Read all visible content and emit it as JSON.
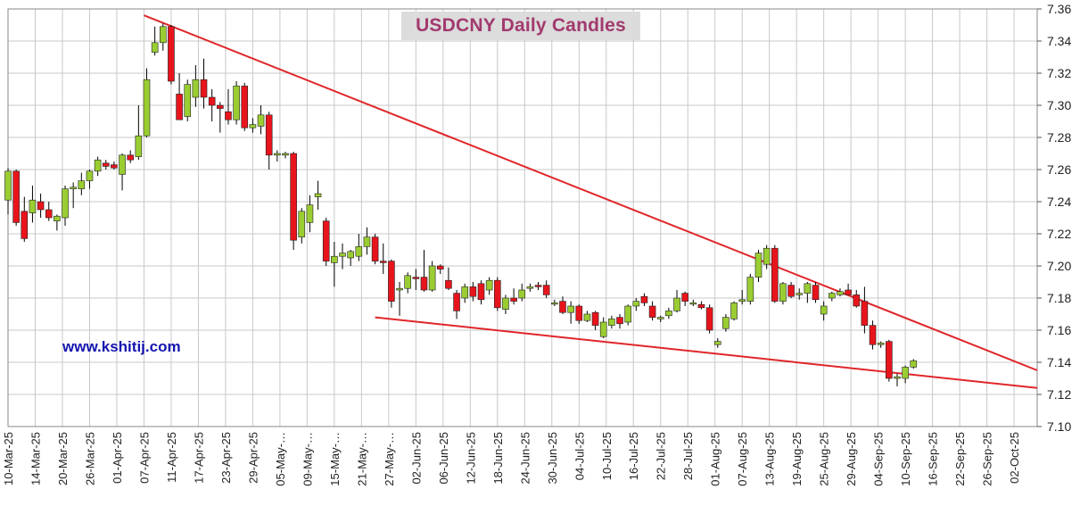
{
  "chart_data": {
    "type": "candlestick",
    "title": "USDCNY Daily Candles",
    "watermark": "www.kshitij.com",
    "xlabel": "",
    "ylabel": "",
    "ylim": [
      7.1,
      7.36
    ],
    "y_ticks": [
      "7.10",
      "7.12",
      "7.14",
      "7.16",
      "7.18",
      "7.20",
      "7.22",
      "7.24",
      "7.26",
      "7.28",
      "7.30",
      "7.32",
      "7.34",
      "7.36"
    ],
    "x_tick_labels": [
      "10-Mar-25",
      "14-Mar-25",
      "20-Mar-25",
      "26-Mar-25",
      "01-Apr-25",
      "07-Apr-25",
      "11-Apr-25",
      "17-Apr-25",
      "23-Apr-25",
      "29-Apr-25",
      "05-May-…",
      "09-May-…",
      "15-May-…",
      "21-May-…",
      "27-May-…",
      "02-Jun-25",
      "06-Jun-25",
      "12-Jun-25",
      "18-Jun-25",
      "24-Jun-25",
      "30-Jun-25",
      "04-Jul-25",
      "10-Jul-25",
      "16-Jul-25",
      "22-Jul-25",
      "28-Jul-25",
      "01-Aug-25",
      "07-Aug-25",
      "13-Aug-25",
      "19-Aug-25",
      "25-Aug-25",
      "29-Aug-25",
      "04-Sep-25",
      "10-Sep-25",
      "16-Sep-25",
      "22-Sep-25",
      "26-Sep-25",
      "02-Oct-25"
    ],
    "grid": true,
    "y_axis_side": "right",
    "colors": {
      "up": "#9acd32",
      "down": "#e8141c",
      "trendline": "#e0262a",
      "grid": "#c8c8c8",
      "wick": "#000000"
    },
    "trendlines": [
      {
        "from": [
          5.0,
          7.356
        ],
        "to": [
          38.0,
          7.135
        ]
      },
      {
        "from": [
          13.5,
          7.168
        ],
        "to": [
          38.0,
          7.124
        ]
      }
    ],
    "candles": [
      {
        "x": 0.0,
        "o": 7.241,
        "h": 7.261,
        "l": 7.232,
        "c": 7.259
      },
      {
        "x": 0.3,
        "o": 7.259,
        "h": 7.26,
        "l": 7.225,
        "c": 7.227
      },
      {
        "x": 0.6,
        "o": 7.234,
        "h": 7.243,
        "l": 7.215,
        "c": 7.217
      },
      {
        "x": 0.9,
        "o": 7.233,
        "h": 7.25,
        "l": 7.227,
        "c": 7.241
      },
      {
        "x": 1.2,
        "o": 7.24,
        "h": 7.245,
        "l": 7.23,
        "c": 7.235
      },
      {
        "x": 1.5,
        "o": 7.235,
        "h": 7.24,
        "l": 7.228,
        "c": 7.23
      },
      {
        "x": 1.8,
        "o": 7.228,
        "h": 7.232,
        "l": 7.222,
        "c": 7.231
      },
      {
        "x": 2.1,
        "o": 7.23,
        "h": 7.25,
        "l": 7.225,
        "c": 7.248
      },
      {
        "x": 2.4,
        "o": 7.248,
        "h": 7.252,
        "l": 7.236,
        "c": 7.249
      },
      {
        "x": 2.7,
        "o": 7.248,
        "h": 7.258,
        "l": 7.244,
        "c": 7.253
      },
      {
        "x": 3.0,
        "o": 7.253,
        "h": 7.26,
        "l": 7.248,
        "c": 7.259
      },
      {
        "x": 3.3,
        "o": 7.259,
        "h": 7.268,
        "l": 7.256,
        "c": 7.266
      },
      {
        "x": 3.6,
        "o": 7.264,
        "h": 7.266,
        "l": 7.26,
        "c": 7.262
      },
      {
        "x": 3.9,
        "o": 7.263,
        "h": 7.265,
        "l": 7.26,
        "c": 7.261
      },
      {
        "x": 4.2,
        "o": 7.257,
        "h": 7.27,
        "l": 7.247,
        "c": 7.269
      },
      {
        "x": 4.5,
        "o": 7.269,
        "h": 7.272,
        "l": 7.264,
        "c": 7.266
      },
      {
        "x": 4.8,
        "o": 7.268,
        "h": 7.3,
        "l": 7.266,
        "c": 7.281
      },
      {
        "x": 5.1,
        "o": 7.281,
        "h": 7.323,
        "l": 7.28,
        "c": 7.316
      },
      {
        "x": 5.4,
        "o": 7.333,
        "h": 7.349,
        "l": 7.331,
        "c": 7.339
      },
      {
        "x": 5.7,
        "o": 7.339,
        "h": 7.351,
        "l": 7.334,
        "c": 7.349
      },
      {
        "x": 6.0,
        "o": 7.349,
        "h": 7.35,
        "l": 7.313,
        "c": 7.315
      },
      {
        "x": 6.3,
        "o": 7.307,
        "h": 7.32,
        "l": 7.291,
        "c": 7.291
      },
      {
        "x": 6.6,
        "o": 7.293,
        "h": 7.316,
        "l": 7.29,
        "c": 7.313
      },
      {
        "x": 6.9,
        "o": 7.305,
        "h": 7.325,
        "l": 7.299,
        "c": 7.316
      },
      {
        "x": 7.2,
        "o": 7.316,
        "h": 7.329,
        "l": 7.298,
        "c": 7.305
      },
      {
        "x": 7.5,
        "o": 7.305,
        "h": 7.31,
        "l": 7.29,
        "c": 7.3
      },
      {
        "x": 7.8,
        "o": 7.3,
        "h": 7.302,
        "l": 7.283,
        "c": 7.298
      },
      {
        "x": 8.1,
        "o": 7.296,
        "h": 7.31,
        "l": 7.288,
        "c": 7.291
      },
      {
        "x": 8.4,
        "o": 7.291,
        "h": 7.315,
        "l": 7.288,
        "c": 7.312
      },
      {
        "x": 8.7,
        "o": 7.312,
        "h": 7.314,
        "l": 7.284,
        "c": 7.286
      },
      {
        "x": 9.0,
        "o": 7.286,
        "h": 7.292,
        "l": 7.283,
        "c": 7.288
      },
      {
        "x": 9.3,
        "o": 7.287,
        "h": 7.3,
        "l": 7.282,
        "c": 7.294
      },
      {
        "x": 9.6,
        "o": 7.294,
        "h": 7.296,
        "l": 7.26,
        "c": 7.269
      },
      {
        "x": 9.9,
        "o": 7.269,
        "h": 7.272,
        "l": 7.265,
        "c": 7.27
      },
      {
        "x": 10.2,
        "o": 7.269,
        "h": 7.271,
        "l": 7.267,
        "c": 7.27
      },
      {
        "x": 10.5,
        "o": 7.27,
        "h": 7.271,
        "l": 7.21,
        "c": 7.216
      },
      {
        "x": 10.8,
        "o": 7.218,
        "h": 7.236,
        "l": 7.214,
        "c": 7.234
      },
      {
        "x": 11.1,
        "o": 7.227,
        "h": 7.244,
        "l": 7.221,
        "c": 7.238
      },
      {
        "x": 11.4,
        "o": 7.243,
        "h": 7.253,
        "l": 7.235,
        "c": 7.245
      },
      {
        "x": 11.7,
        "o": 7.228,
        "h": 7.23,
        "l": 7.2,
        "c": 7.203
      },
      {
        "x": 12.0,
        "o": 7.202,
        "h": 7.215,
        "l": 7.187,
        "c": 7.206
      },
      {
        "x": 12.3,
        "o": 7.206,
        "h": 7.214,
        "l": 7.198,
        "c": 7.208
      },
      {
        "x": 12.6,
        "o": 7.205,
        "h": 7.21,
        "l": 7.2,
        "c": 7.209
      },
      {
        "x": 12.9,
        "o": 7.206,
        "h": 7.22,
        "l": 7.203,
        "c": 7.212
      },
      {
        "x": 13.2,
        "o": 7.212,
        "h": 7.224,
        "l": 7.207,
        "c": 7.218
      },
      {
        "x": 13.5,
        "o": 7.218,
        "h": 7.22,
        "l": 7.201,
        "c": 7.203
      },
      {
        "x": 13.8,
        "o": 7.203,
        "h": 7.214,
        "l": 7.195,
        "c": 7.202
      },
      {
        "x": 14.1,
        "o": 7.203,
        "h": 7.204,
        "l": 7.174,
        "c": 7.178
      },
      {
        "x": 14.4,
        "o": 7.185,
        "h": 7.19,
        "l": 7.169,
        "c": 7.186
      },
      {
        "x": 14.7,
        "o": 7.186,
        "h": 7.196,
        "l": 7.183,
        "c": 7.194
      },
      {
        "x": 15.0,
        "o": 7.193,
        "h": 7.198,
        "l": 7.185,
        "c": 7.192
      },
      {
        "x": 15.3,
        "o": 7.193,
        "h": 7.21,
        "l": 7.184,
        "c": 7.185
      },
      {
        "x": 15.6,
        "o": 7.185,
        "h": 7.203,
        "l": 7.184,
        "c": 7.2
      },
      {
        "x": 15.9,
        "o": 7.2,
        "h": 7.201,
        "l": 7.195,
        "c": 7.198
      },
      {
        "x": 16.2,
        "o": 7.191,
        "h": 7.199,
        "l": 7.185,
        "c": 7.186
      },
      {
        "x": 16.5,
        "o": 7.183,
        "h": 7.185,
        "l": 7.167,
        "c": 7.172
      },
      {
        "x": 16.8,
        "o": 7.18,
        "h": 7.189,
        "l": 7.177,
        "c": 7.187
      },
      {
        "x": 17.1,
        "o": 7.187,
        "h": 7.19,
        "l": 7.178,
        "c": 7.181
      },
      {
        "x": 17.4,
        "o": 7.189,
        "h": 7.191,
        "l": 7.176,
        "c": 7.179
      },
      {
        "x": 17.7,
        "o": 7.185,
        "h": 7.193,
        "l": 7.182,
        "c": 7.191
      },
      {
        "x": 18.0,
        "o": 7.191,
        "h": 7.193,
        "l": 7.172,
        "c": 7.174
      },
      {
        "x": 18.3,
        "o": 7.173,
        "h": 7.182,
        "l": 7.17,
        "c": 7.18
      },
      {
        "x": 18.6,
        "o": 7.18,
        "h": 7.186,
        "l": 7.176,
        "c": 7.178
      },
      {
        "x": 18.9,
        "o": 7.18,
        "h": 7.189,
        "l": 7.178,
        "c": 7.185
      },
      {
        "x": 19.2,
        "o": 7.186,
        "h": 7.189,
        "l": 7.184,
        "c": 7.187
      },
      {
        "x": 19.5,
        "o": 7.188,
        "h": 7.19,
        "l": 7.185,
        "c": 7.187
      },
      {
        "x": 19.8,
        "o": 7.188,
        "h": 7.191,
        "l": 7.18,
        "c": 7.182
      },
      {
        "x": 20.1,
        "o": 7.177,
        "h": 7.179,
        "l": 7.175,
        "c": 7.177
      },
      {
        "x": 20.4,
        "o": 7.178,
        "h": 7.181,
        "l": 7.17,
        "c": 7.171
      },
      {
        "x": 20.7,
        "o": 7.171,
        "h": 7.178,
        "l": 7.164,
        "c": 7.175
      },
      {
        "x": 21.0,
        "o": 7.175,
        "h": 7.176,
        "l": 7.164,
        "c": 7.166
      },
      {
        "x": 21.3,
        "o": 7.166,
        "h": 7.172,
        "l": 7.165,
        "c": 7.17
      },
      {
        "x": 21.6,
        "o": 7.171,
        "h": 7.172,
        "l": 7.16,
        "c": 7.163
      },
      {
        "x": 21.9,
        "o": 7.156,
        "h": 7.168,
        "l": 7.155,
        "c": 7.165
      },
      {
        "x": 22.2,
        "o": 7.163,
        "h": 7.169,
        "l": 7.161,
        "c": 7.167
      },
      {
        "x": 22.5,
        "o": 7.168,
        "h": 7.17,
        "l": 7.161,
        "c": 7.164
      },
      {
        "x": 22.8,
        "o": 7.165,
        "h": 7.176,
        "l": 7.163,
        "c": 7.175
      },
      {
        "x": 23.1,
        "o": 7.175,
        "h": 7.18,
        "l": 7.172,
        "c": 7.178
      },
      {
        "x": 23.4,
        "o": 7.181,
        "h": 7.183,
        "l": 7.175,
        "c": 7.177
      },
      {
        "x": 23.7,
        "o": 7.175,
        "h": 7.178,
        "l": 7.166,
        "c": 7.168
      },
      {
        "x": 24.0,
        "o": 7.167,
        "h": 7.169,
        "l": 7.165,
        "c": 7.168
      },
      {
        "x": 24.3,
        "o": 7.169,
        "h": 7.174,
        "l": 7.167,
        "c": 7.172
      },
      {
        "x": 24.6,
        "o": 7.172,
        "h": 7.185,
        "l": 7.171,
        "c": 7.18
      },
      {
        "x": 24.9,
        "o": 7.183,
        "h": 7.184,
        "l": 7.175,
        "c": 7.178
      },
      {
        "x": 25.2,
        "o": 7.177,
        "h": 7.179,
        "l": 7.175,
        "c": 7.177
      },
      {
        "x": 25.5,
        "o": 7.176,
        "h": 7.178,
        "l": 7.173,
        "c": 7.174
      },
      {
        "x": 25.8,
        "o": 7.174,
        "h": 7.176,
        "l": 7.158,
        "c": 7.16
      },
      {
        "x": 26.1,
        "o": 7.151,
        "h": 7.155,
        "l": 7.149,
        "c": 7.153
      },
      {
        "x": 26.4,
        "o": 7.161,
        "h": 7.17,
        "l": 7.159,
        "c": 7.168
      },
      {
        "x": 26.7,
        "o": 7.167,
        "h": 7.178,
        "l": 7.166,
        "c": 7.177
      },
      {
        "x": 27.0,
        "o": 7.178,
        "h": 7.185,
        "l": 7.176,
        "c": 7.179
      },
      {
        "x": 27.3,
        "o": 7.178,
        "h": 7.195,
        "l": 7.176,
        "c": 7.193
      },
      {
        "x": 27.6,
        "o": 7.193,
        "h": 7.21,
        "l": 7.19,
        "c": 7.208
      },
      {
        "x": 27.9,
        "o": 7.201,
        "h": 7.213,
        "l": 7.198,
        "c": 7.211
      },
      {
        "x": 28.2,
        "o": 7.211,
        "h": 7.213,
        "l": 7.177,
        "c": 7.178
      },
      {
        "x": 28.5,
        "o": 7.178,
        "h": 7.19,
        "l": 7.176,
        "c": 7.189
      },
      {
        "x": 28.8,
        "o": 7.188,
        "h": 7.19,
        "l": 7.18,
        "c": 7.181
      },
      {
        "x": 29.1,
        "o": 7.182,
        "h": 7.186,
        "l": 7.179,
        "c": 7.183
      },
      {
        "x": 29.4,
        "o": 7.183,
        "h": 7.19,
        "l": 7.177,
        "c": 7.189
      },
      {
        "x": 29.7,
        "o": 7.188,
        "h": 7.19,
        "l": 7.177,
        "c": 7.179
      },
      {
        "x": 30.0,
        "o": 7.17,
        "h": 7.178,
        "l": 7.166,
        "c": 7.175
      },
      {
        "x": 30.3,
        "o": 7.18,
        "h": 7.184,
        "l": 7.178,
        "c": 7.183
      },
      {
        "x": 30.6,
        "o": 7.182,
        "h": 7.186,
        "l": 7.181,
        "c": 7.184
      },
      {
        "x": 30.9,
        "o": 7.185,
        "h": 7.189,
        "l": 7.182,
        "c": 7.182
      },
      {
        "x": 31.2,
        "o": 7.182,
        "h": 7.185,
        "l": 7.174,
        "c": 7.175
      },
      {
        "x": 31.5,
        "o": 7.178,
        "h": 7.187,
        "l": 7.158,
        "c": 7.163
      },
      {
        "x": 31.8,
        "o": 7.163,
        "h": 7.166,
        "l": 7.148,
        "c": 7.151
      },
      {
        "x": 32.1,
        "o": 7.151,
        "h": 7.153,
        "l": 7.149,
        "c": 7.152
      },
      {
        "x": 32.4,
        "o": 7.153,
        "h": 7.154,
        "l": 7.128,
        "c": 7.13
      },
      {
        "x": 32.7,
        "o": 7.13,
        "h": 7.133,
        "l": 7.125,
        "c": 7.131
      },
      {
        "x": 33.0,
        "o": 7.13,
        "h": 7.138,
        "l": 7.127,
        "c": 7.137
      },
      {
        "x": 33.3,
        "o": 7.137,
        "h": 7.142,
        "l": 7.136,
        "c": 7.141
      }
    ]
  }
}
